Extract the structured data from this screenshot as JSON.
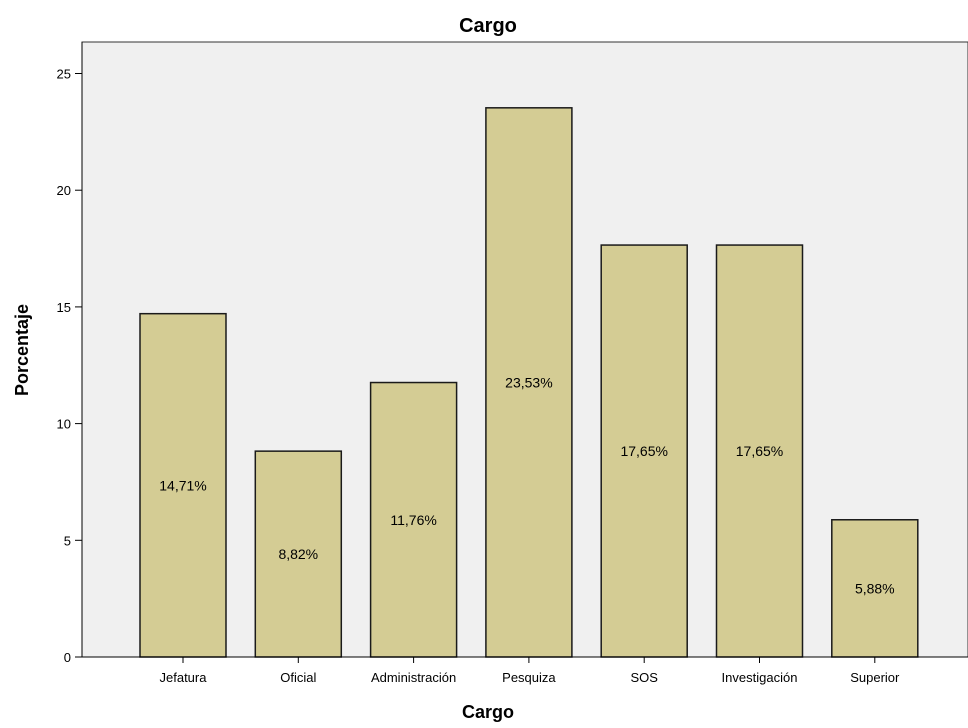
{
  "chart_data": {
    "type": "bar",
    "title": "Cargo",
    "xlabel": "Cargo",
    "ylabel": "Porcentaje",
    "categories": [
      "Jefatura",
      "Oficial",
      "Administración",
      "Pesquiza",
      "SOS",
      "Investigación",
      "Superior"
    ],
    "values": [
      14.71,
      8.82,
      11.76,
      23.53,
      17.65,
      17.65,
      5.88
    ],
    "data_labels": [
      "14,71%",
      "8,82%",
      "11,76%",
      "23,53%",
      "17,65%",
      "17,65%",
      "5,88%"
    ],
    "ylim": [
      0,
      26.35
    ],
    "yticks": [
      0,
      5,
      10,
      15,
      20,
      25
    ],
    "grid": false,
    "colors": {
      "bar_fill": "#d4cc94",
      "bar_stroke": "#1a1a1a",
      "plot_background": "#f0f0f0",
      "axis": "#000000"
    }
  }
}
